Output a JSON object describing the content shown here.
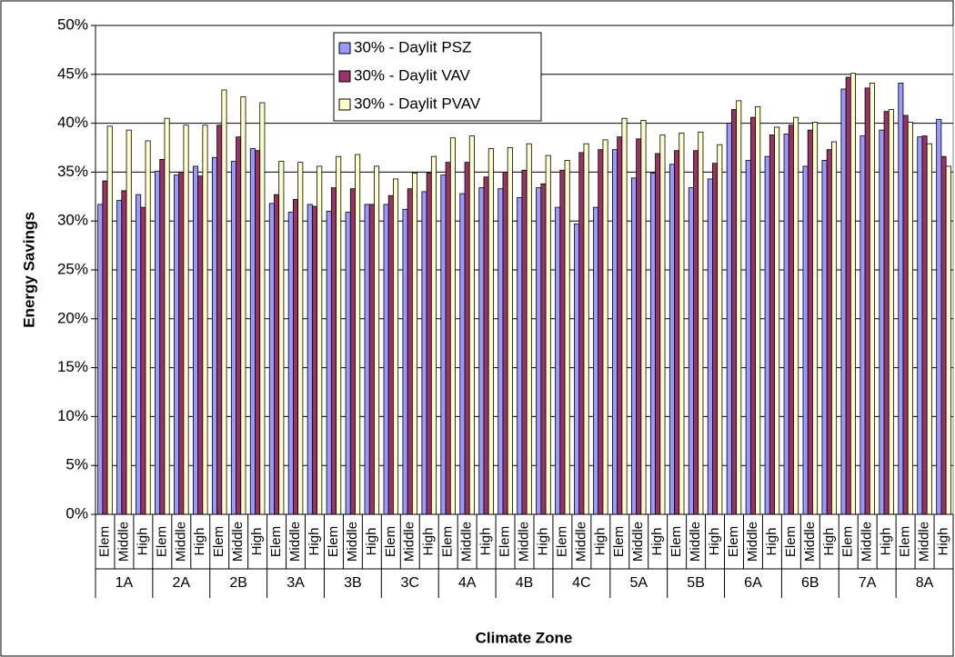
{
  "chart_data": {
    "type": "bar",
    "x_label": "Climate Zone",
    "y_label": "Energy Savings",
    "category_groups": [
      "1A",
      "2A",
      "2B",
      "3A",
      "3B",
      "3C",
      "4A",
      "4B",
      "4C",
      "5A",
      "5B",
      "6A",
      "6B",
      "7A",
      "8A"
    ],
    "categories": [
      "Elem",
      "Middle",
      "High",
      "Elem",
      "Middle",
      "High",
      "Elem",
      "Middle",
      "High",
      "Elem",
      "Middle",
      "High",
      "Elem",
      "Middle",
      "High",
      "Elem",
      "Middle",
      "High",
      "Elem",
      "Middle",
      "High",
      "Elem",
      "Middle",
      "High",
      "Elem",
      "Middle",
      "High",
      "Elem",
      "Middle",
      "High",
      "Elem",
      "Middle",
      "High",
      "Elem",
      "Middle",
      "High",
      "Elem",
      "Middle",
      "High",
      "Elem",
      "Middle",
      "High",
      "Elem",
      "Middle",
      "High"
    ],
    "series": [
      {
        "name": "30% - Daylit PSZ",
        "color": "#9999ff",
        "values": [
          31.7,
          32.1,
          32.7,
          35.1,
          34.7,
          35.6,
          36.5,
          36.1,
          37.4,
          31.8,
          30.9,
          31.7,
          31.0,
          30.9,
          31.7,
          31.7,
          31.2,
          33.0,
          34.7,
          32.8,
          33.4,
          33.3,
          32.4,
          33.4,
          31.4,
          29.7,
          31.4,
          37.3,
          34.4,
          34.9,
          35.8,
          33.4,
          34.3,
          40.0,
          36.2,
          36.6,
          38.9,
          35.6,
          36.2,
          43.5,
          38.7,
          39.3,
          44.1,
          38.6,
          40.4
        ]
      },
      {
        "name": "30% - Daylit VAV",
        "color": "#993366",
        "values": [
          34.1,
          33.1,
          31.4,
          36.3,
          35.0,
          34.6,
          39.8,
          38.6,
          37.2,
          32.7,
          32.2,
          31.5,
          33.4,
          33.3,
          31.7,
          32.6,
          33.3,
          34.9,
          36.0,
          36.0,
          34.5,
          35.0,
          35.2,
          33.8,
          35.2,
          37.0,
          37.3,
          38.6,
          38.4,
          36.9,
          37.2,
          37.2,
          35.9,
          41.4,
          40.6,
          38.8,
          39.8,
          39.3,
          37.3,
          44.7,
          43.6,
          41.2,
          40.8,
          38.7,
          36.6
        ]
      },
      {
        "name": "30% - Daylit PVAV",
        "color": "#ffffcc",
        "values": [
          39.7,
          39.3,
          38.2,
          40.5,
          39.8,
          39.8,
          43.4,
          42.7,
          42.1,
          36.1,
          36.0,
          35.6,
          36.6,
          36.8,
          35.6,
          34.3,
          34.9,
          36.6,
          38.5,
          38.7,
          37.4,
          37.5,
          37.9,
          36.7,
          36.2,
          37.9,
          38.3,
          40.5,
          40.3,
          38.8,
          39.0,
          39.1,
          37.8,
          42.3,
          41.7,
          39.6,
          40.6,
          40.1,
          38.1,
          45.1,
          44.1,
          41.4,
          40.1,
          37.9,
          35.6
        ]
      }
    ],
    "ylim": [
      0,
      50
    ],
    "yticks": [
      {
        "value": 0,
        "label": "0%"
      },
      {
        "value": 5,
        "label": "5%"
      },
      {
        "value": 10,
        "label": "10%"
      },
      {
        "value": 15,
        "label": "15%"
      },
      {
        "value": 20,
        "label": "20%"
      },
      {
        "value": 25,
        "label": "25%"
      },
      {
        "value": 30,
        "label": "30%"
      },
      {
        "value": 35,
        "label": "35%"
      },
      {
        "value": 40,
        "label": "40%"
      },
      {
        "value": 45,
        "label": "45%"
      },
      {
        "value": 50,
        "label": "50%"
      }
    ],
    "grid": true
  }
}
